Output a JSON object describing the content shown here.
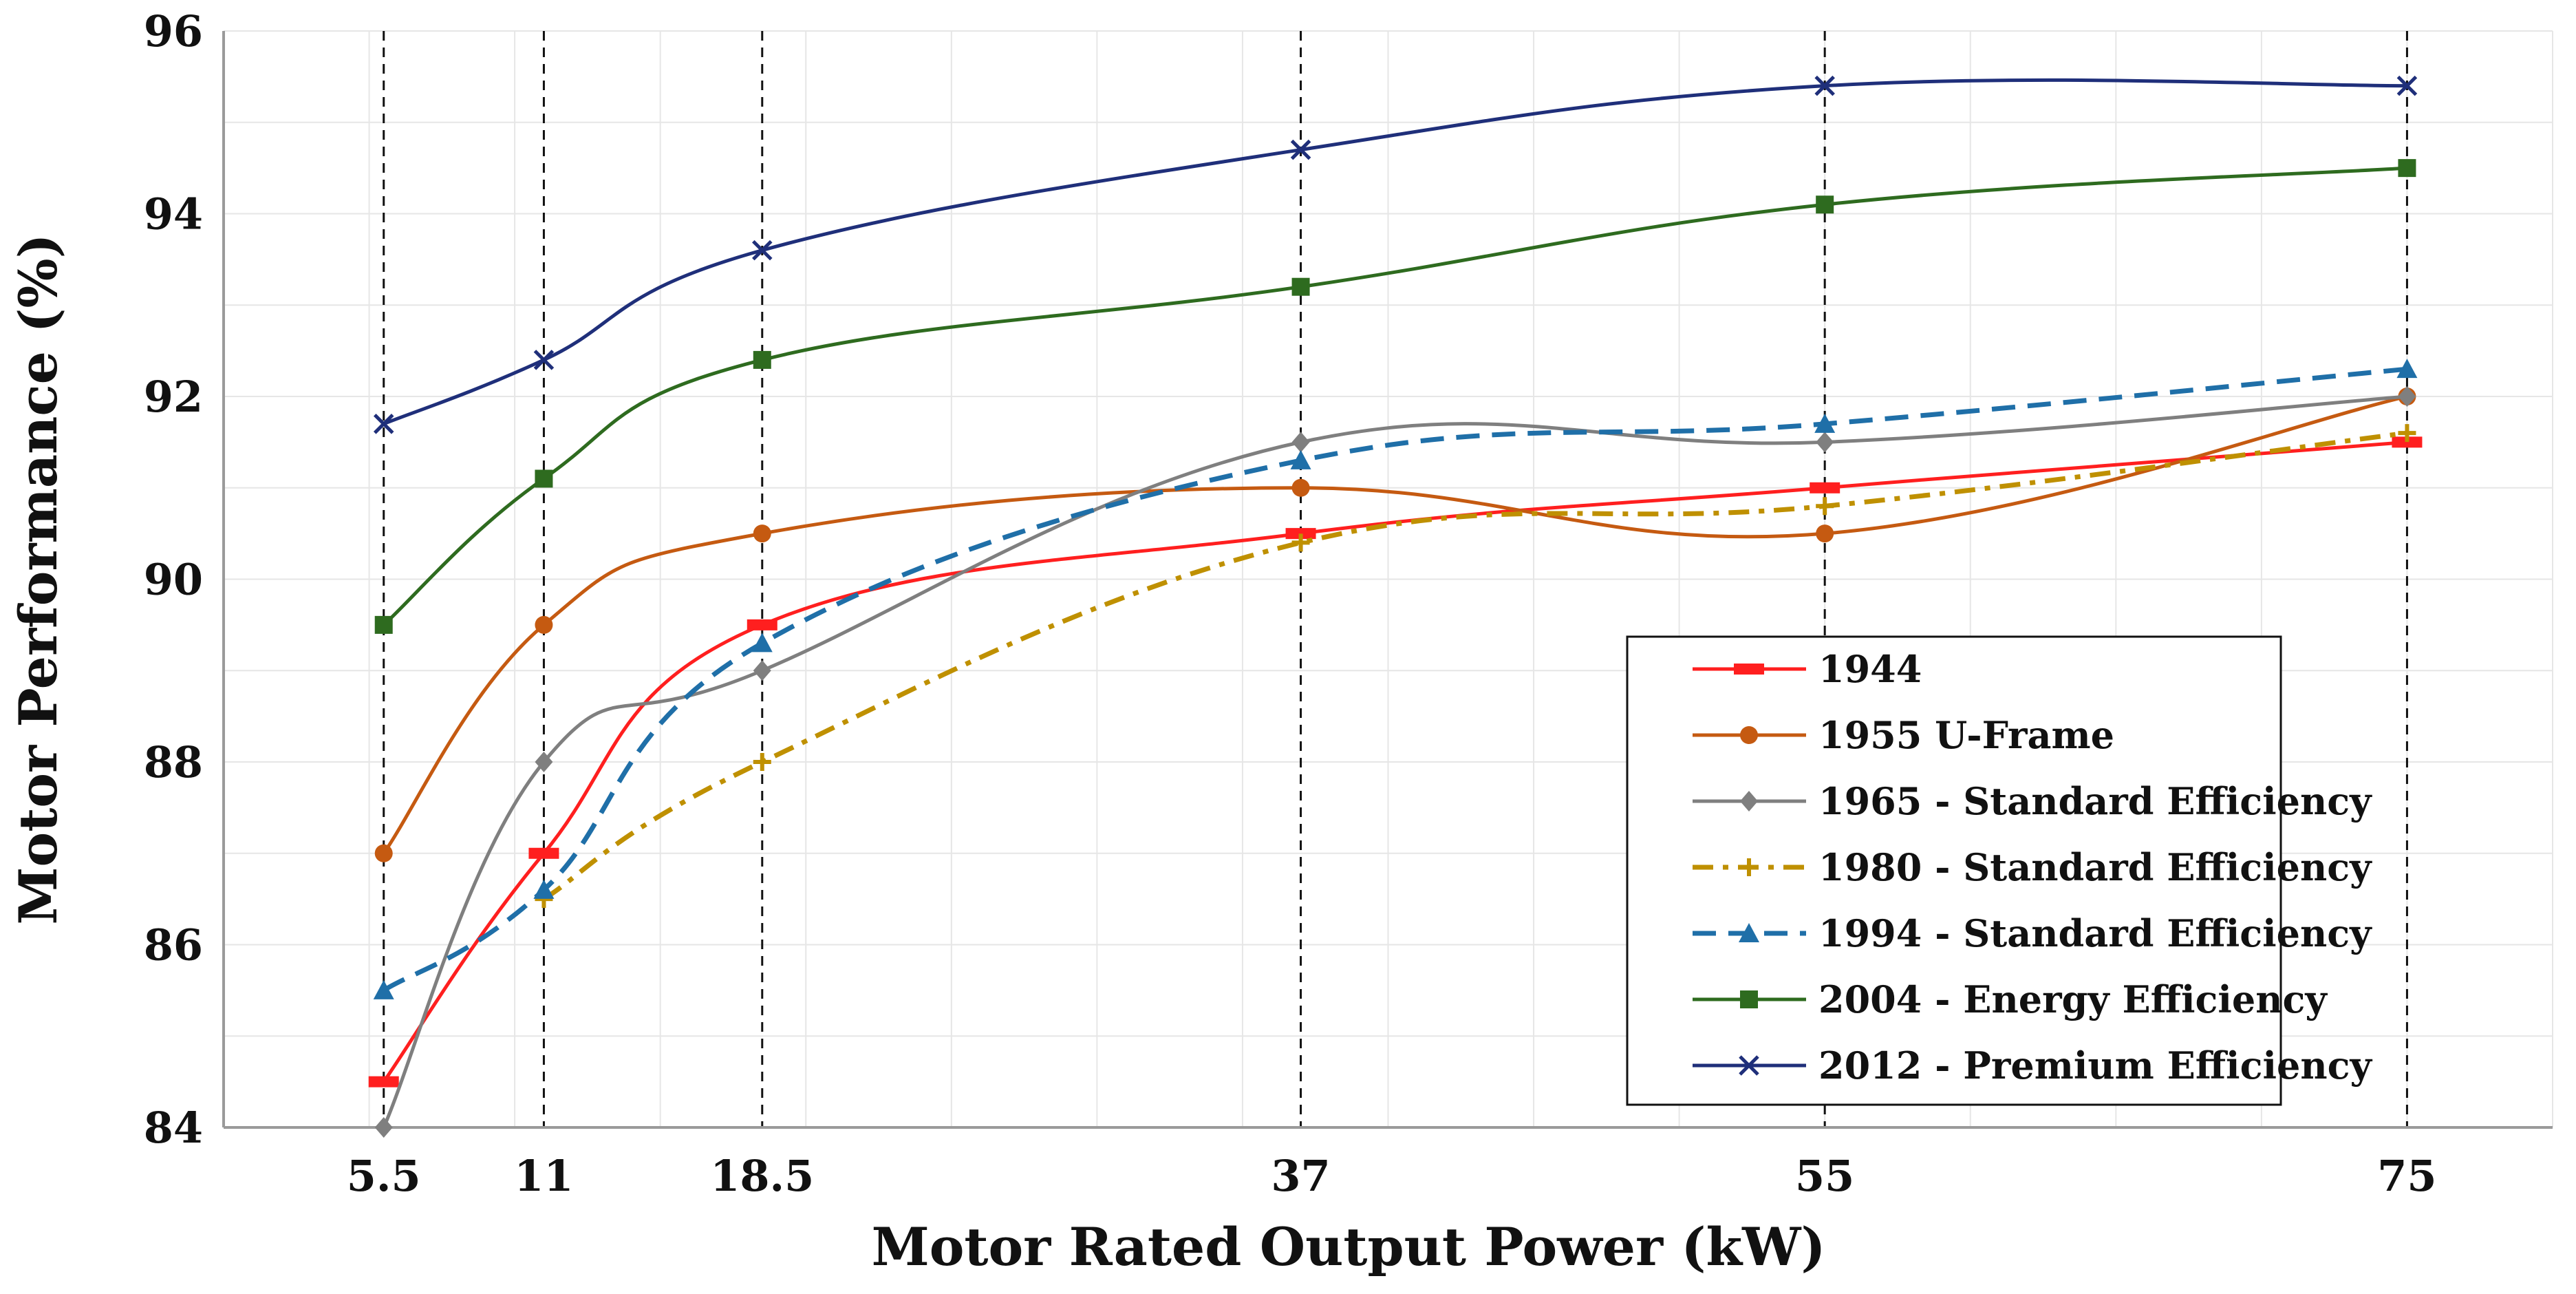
{
  "chart_data": {
    "type": "line",
    "title": "",
    "xlabel": "Motor Rated Output Power (kW)",
    "ylabel": "Motor Performance (%)",
    "x": [
      5.5,
      11,
      18.5,
      37,
      55,
      75
    ],
    "x_tick_labels": [
      "5.5",
      "11",
      "18.5",
      "37",
      "55",
      "75"
    ],
    "y_tick_labels": [
      "84",
      "86",
      "88",
      "90",
      "92",
      "94",
      "96"
    ],
    "xlim": [
      0,
      80
    ],
    "ylim": [
      84,
      96
    ],
    "grid": true,
    "dashed_vertical_lines_at": [
      5.5,
      11,
      18.5,
      37,
      55,
      75
    ],
    "legend_position": "bottom-right",
    "series": [
      {
        "name": "1944",
        "values": [
          84.5,
          87.0,
          89.5,
          90.5,
          91.0,
          91.5
        ],
        "color": "#ff1f1f",
        "marker": "dash",
        "dash": "solid"
      },
      {
        "name": "1955 U-Frame",
        "values": [
          87.0,
          89.5,
          90.5,
          91.0,
          90.5,
          92.0
        ],
        "color": "#c55a11",
        "marker": "circle",
        "dash": "solid"
      },
      {
        "name": "1965 - Standard Efficiency",
        "values": [
          84.0,
          88.0,
          89.0,
          91.5,
          91.5,
          92.0
        ],
        "color": "#7f7f7f",
        "marker": "diamond",
        "dash": "solid"
      },
      {
        "name": "1980 - Standard Efficiency",
        "values": [
          null,
          86.5,
          88.0,
          90.4,
          90.8,
          91.6
        ],
        "color": "#bf9000",
        "marker": "plus",
        "dash": "dashdot"
      },
      {
        "name": "1994 - Standard Efficiency",
        "values": [
          85.5,
          86.6,
          89.3,
          91.3,
          91.7,
          92.3
        ],
        "color": "#1f6fa8",
        "marker": "triangle",
        "dash": "dashed"
      },
      {
        "name": "2004 - Energy Efficiency",
        "values": [
          89.5,
          91.1,
          92.4,
          93.2,
          94.1,
          94.5
        ],
        "color": "#2e6b1f",
        "marker": "square",
        "dash": "solid"
      },
      {
        "name": "2012 - Premium Efficiency",
        "values": [
          91.7,
          92.4,
          93.6,
          94.7,
          95.4,
          95.4
        ],
        "color": "#1f2f7a",
        "marker": "x",
        "dash": "solid"
      }
    ]
  }
}
